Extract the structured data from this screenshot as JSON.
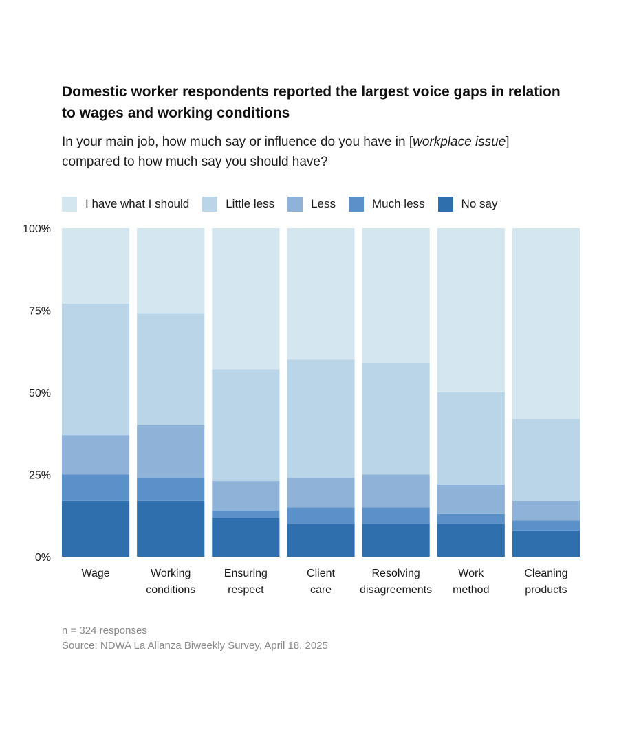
{
  "header": {
    "title": "Domestic worker respondents reported the largest voice gaps in relation to wages and working conditions",
    "subtitle_before": "In your main job, how much say or influence do you have in [",
    "subtitle_italic": "workplace issue",
    "subtitle_after": "] compared to how much say you should have?"
  },
  "chart_data": {
    "type": "bar",
    "stacked": true,
    "orientation": "vertical",
    "title": "Domestic worker respondents reported the largest voice gaps in relation to wages and working conditions",
    "subtitle": "In your main job, how much say or influence do you have in [workplace issue] compared to how much say you should have?",
    "xlabel": "",
    "ylabel": "",
    "ylim": [
      0,
      100
    ],
    "yticks": [
      0,
      25,
      50,
      75,
      100
    ],
    "ytick_labels": [
      "0%",
      "25%",
      "50%",
      "75%",
      "100%"
    ],
    "grid": false,
    "legend_position": "top-left",
    "categories": [
      [
        "Wage"
      ],
      [
        "Working",
        "conditions"
      ],
      [
        "Ensuring",
        "respect"
      ],
      [
        "Client",
        "care"
      ],
      [
        "Resolving",
        "disagreements"
      ],
      [
        "Work",
        "method"
      ],
      [
        "Cleaning",
        "products"
      ]
    ],
    "series": [
      {
        "name": "No say",
        "color": "#2f6fad",
        "values": [
          17,
          17,
          12,
          10,
          10,
          10,
          8
        ]
      },
      {
        "name": "Much less",
        "color": "#5b91c9",
        "values": [
          8,
          7,
          2,
          5,
          5,
          3,
          3
        ]
      },
      {
        "name": "Less",
        "color": "#8fb2d8",
        "values": [
          12,
          16,
          9,
          9,
          10,
          9,
          6
        ]
      },
      {
        "name": "Little less",
        "color": "#bad5e8",
        "values": [
          40,
          34,
          34,
          36,
          34,
          28,
          25
        ]
      },
      {
        "name": "I have what I should",
        "color": "#d4e7f0",
        "values": [
          23,
          26,
          43,
          40,
          41,
          50,
          58
        ]
      }
    ],
    "legend_order": [
      "I have what I should",
      "Little less",
      "Less",
      "Much less",
      "No say"
    ]
  },
  "legend": [
    {
      "label": "I have what I should",
      "color": "#d4e7f0"
    },
    {
      "label": "Little less",
      "color": "#bad5e8"
    },
    {
      "label": "Less",
      "color": "#8fb2d8"
    },
    {
      "label": "Much less",
      "color": "#5b91c9"
    },
    {
      "label": "No say",
      "color": "#2f6fad"
    }
  ],
  "footer": {
    "n_note": "n =  324 responses",
    "source": "Source: NDWA La Alianza Biweekly Survey, April 18, 2025"
  }
}
